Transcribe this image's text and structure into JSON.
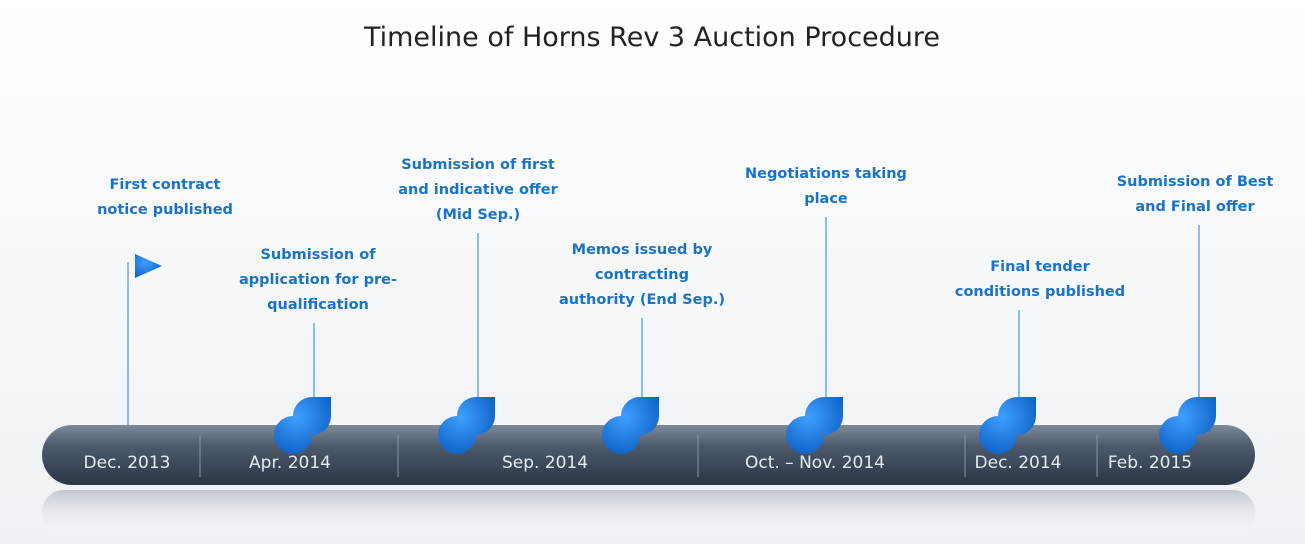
{
  "title": "Timeline of Horns Rev 3 Auction Procedure",
  "periods": [
    "Dec. 2013",
    "Apr. 2014",
    "Sep. 2014",
    "Oct. – Nov. 2014",
    "Dec. 2014",
    "Feb. 2015"
  ],
  "events": [
    {
      "lines": [
        "First contract",
        "notice published"
      ]
    },
    {
      "lines": [
        "Submission of",
        "application for pre-",
        "qualification"
      ]
    },
    {
      "lines": [
        "Submission of first",
        "and indicative offer",
        "(Mid Sep.)"
      ]
    },
    {
      "lines": [
        "Memos issued by",
        "contracting",
        "authority (End Sep.)"
      ]
    },
    {
      "lines": [
        "Negotiations taking",
        "place"
      ]
    },
    {
      "lines": [
        "Final tender",
        "conditions published"
      ]
    },
    {
      "lines": [
        "Submission of Best",
        "and Final offer"
      ]
    }
  ]
}
